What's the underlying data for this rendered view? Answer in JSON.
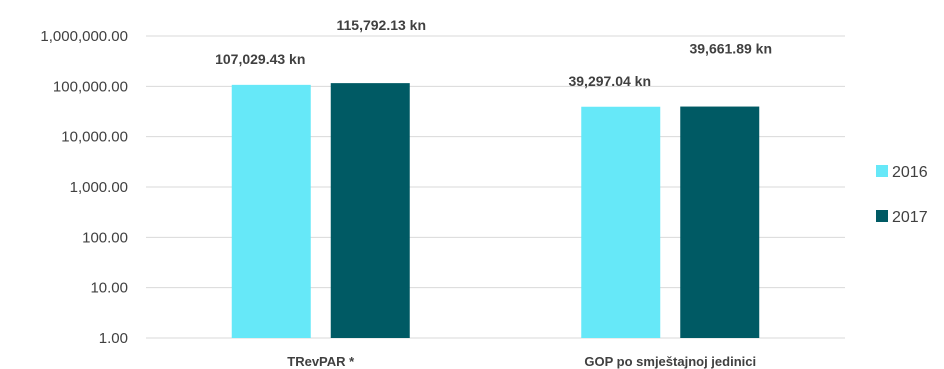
{
  "chart_data": {
    "type": "bar",
    "y_scale": "log",
    "ylim": [
      1,
      1000000
    ],
    "y_ticks": [
      "1.00",
      "10.00",
      "100.00",
      "1,000.00",
      "10,000.00",
      "100,000.00",
      "1,000,000.00"
    ],
    "grid": true,
    "categories": [
      "TRevPAR *",
      "GOP po smještajnoj jedinici"
    ],
    "series": [
      {
        "name": "2016",
        "color": "#66e8f8",
        "values": [
          107029.43,
          39297.04
        ],
        "labels": [
          "107,029.43 kn",
          "39,297.04 kn"
        ]
      },
      {
        "name": "2017",
        "color": "#005a64",
        "values": [
          115792.13,
          39661.89
        ],
        "labels": [
          "115,792.13 kn",
          "39,661.89 kn"
        ]
      }
    ],
    "legend_position": "right"
  }
}
